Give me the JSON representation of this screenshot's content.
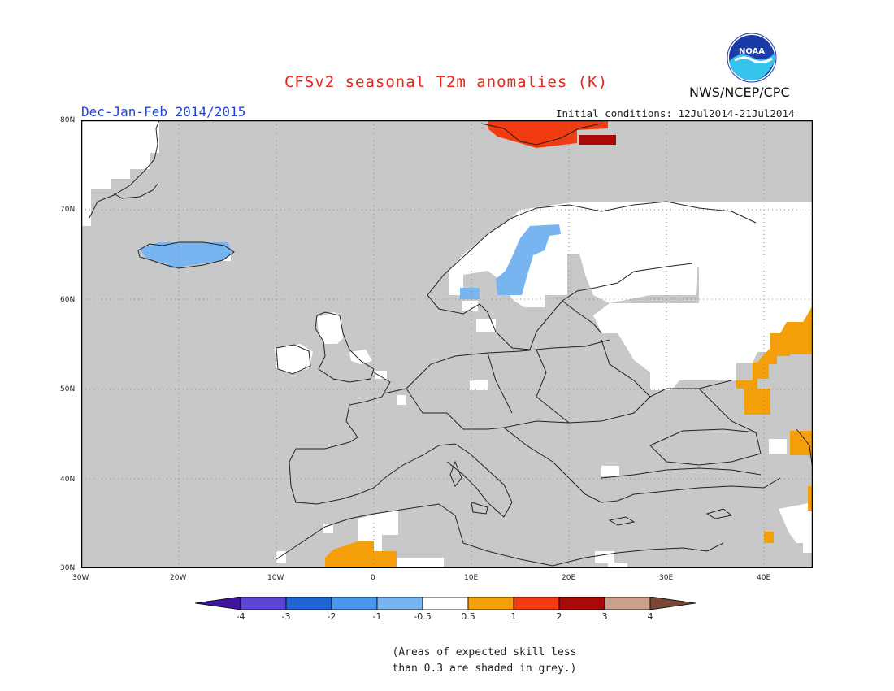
{
  "header": {
    "title": "CFSv2 seasonal T2m anomalies (K)",
    "season": "Dec-Jan-Feb 2014/2015",
    "initial_conditions": "Initial conditions: 12Jul2014-21Jul2014",
    "agency": "NWS/NCEP/CPC",
    "logo_text": "NOAA"
  },
  "map": {
    "region": "Europe",
    "lon_range": [
      -30,
      45
    ],
    "lat_range": [
      30,
      80
    ],
    "lon_ticks": [
      "30W",
      "20W",
      "10W",
      "0",
      "10E",
      "20E",
      "30E",
      "40E"
    ],
    "lat_ticks": [
      "80N",
      "70N",
      "60N",
      "50N",
      "40N",
      "30N"
    ],
    "grid": "dotted",
    "skill_mask_color": "#c8c8c8",
    "anomaly_patches": [
      {
        "area": "Svalbard",
        "category": "2",
        "color": "#f03c10"
      },
      {
        "area": "Svalbard east",
        "category": "3",
        "color": "#a80a0a"
      },
      {
        "area": "Iceland",
        "category": "-1",
        "color": "#78b4f0"
      },
      {
        "area": "Scandinavia mountains",
        "category": "-1",
        "color": "#78b4f0"
      },
      {
        "area": "Southern Norway",
        "category": "-1",
        "color": "#78b4f0"
      },
      {
        "area": "Western Russia",
        "category": "1",
        "color": "#f5a00a"
      },
      {
        "area": "Southern Russia / Caucasus",
        "category": "1",
        "color": "#f5a00a"
      },
      {
        "area": "Northwest Africa",
        "category": "1",
        "color": "#f5a00a"
      }
    ]
  },
  "colorbar": {
    "labels": [
      "-4",
      "-3",
      "-2",
      "-1",
      "-0.5",
      "0.5",
      "1",
      "2",
      "3",
      "4"
    ],
    "colors": [
      "#3c14a0",
      "#5a46d2",
      "#1e64d2",
      "#4696eb",
      "#78b4f0",
      "#ffffff",
      "#f5a00a",
      "#f03c10",
      "#a80a0a",
      "#c8a08c",
      "#784632"
    ]
  },
  "note": {
    "line1": "(Areas of expected skill less",
    "line2": "than 0.3 are shaded in grey.)"
  }
}
